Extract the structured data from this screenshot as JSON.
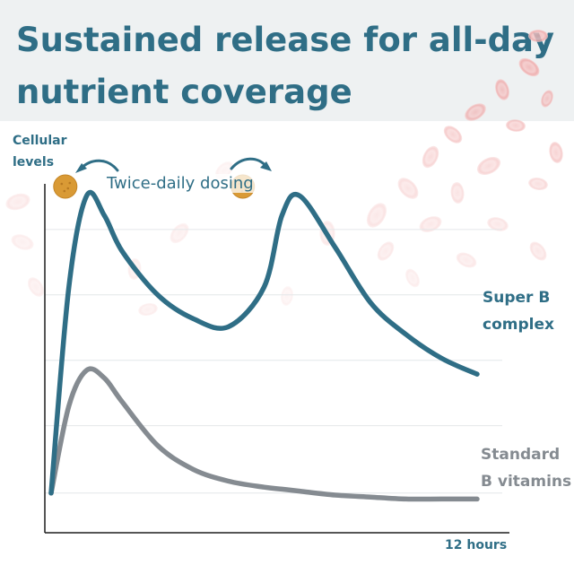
{
  "title": "Sustained release for all-day nutrient coverage",
  "chart_data": {
    "type": "line",
    "ylabel": "Cellular levels",
    "xlabel": "12 hours",
    "annotation": "Twice-daily dosing",
    "x": [
      0,
      0.5,
      1,
      1.5,
      2,
      3,
      4,
      5,
      6,
      6.5,
      7,
      8,
      9,
      10,
      11,
      12
    ],
    "xlim": [
      0,
      12
    ],
    "ylim": [
      0,
      100
    ],
    "grid": true,
    "series": [
      {
        "name": "Super B complex",
        "color": "#2f6e86",
        "values": [
          10,
          62,
          85,
          80,
          71,
          60,
          54,
          52,
          62,
          80,
          85,
          72,
          58,
          50,
          44,
          40
        ]
      },
      {
        "name": "Standard B vitamins",
        "color": "#858b91",
        "values": [
          10,
          32,
          41,
          39,
          33,
          22,
          16,
          13,
          11.5,
          11,
          10.5,
          9.5,
          9,
          8.5,
          8.5,
          8.5
        ]
      }
    ],
    "dose_times": [
      0.5,
      5.5
    ],
    "dose_color": "#d99a35"
  }
}
